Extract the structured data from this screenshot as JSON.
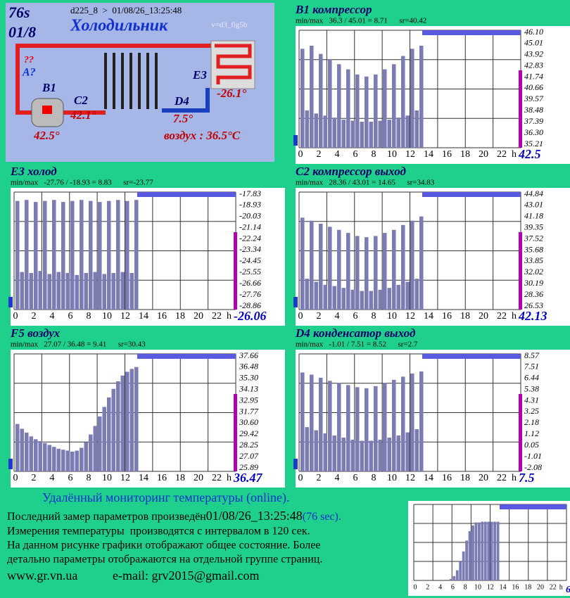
{
  "diagram": {
    "age": "76s",
    "page": "01/8",
    "device": "d225_8  >  01/08/26_13:25:48",
    "name": "Холодильник",
    "version": "v=d3_fig5b",
    "unknown": "??",
    "sensor_a": "A?",
    "b1": "B1",
    "b1_temp": "42.5°",
    "c2": "C2",
    "c2_temp": "42.1°",
    "e3": "E3",
    "e3_temp": "-26.1°",
    "d4": "D4",
    "d4_temp": "7.5°",
    "air": "воздух : 36.5°C"
  },
  "chart_data": [
    {
      "type": "area",
      "title": "B1 компрессор",
      "subtitle": "min/max   36.3 / 45.01 = 8.71      sr=40.42",
      "current": 42.5,
      "color": "#7c7cb4",
      "x_label": "h",
      "x": [
        0,
        0.5,
        1,
        1.5,
        2,
        2.5,
        3,
        3.5,
        4,
        4.5,
        5,
        5.5,
        6,
        6.5,
        7,
        7.5,
        8,
        8.5,
        9,
        9.5,
        10,
        10.5,
        11,
        11.5,
        12,
        12.5,
        13
      ],
      "values": [
        44.5,
        38.5,
        44.8,
        38.2,
        44,
        38,
        43.5,
        37.8,
        43,
        37.6,
        42.5,
        37.5,
        42,
        37.4,
        41.8,
        37.4,
        42,
        37.5,
        42.5,
        37.6,
        43,
        37.8,
        43.8,
        38,
        44.5,
        38.5,
        44.8
      ],
      "xlim": [
        0,
        24
      ],
      "xticks": [
        0,
        2,
        4,
        6,
        8,
        10,
        12,
        14,
        16,
        18,
        20,
        22
      ],
      "ylim": [
        35.21,
        46.1
      ],
      "yticks": [
        {
          "value": 46.1,
          "label": "46.10"
        },
        45.01,
        43.92,
        42.83,
        41.74,
        40.66,
        39.57,
        38.48,
        37.39,
        {
          "value": 36.3,
          "label": "36.30"
        },
        35.21
      ]
    },
    {
      "type": "area",
      "title": "E3 холод",
      "subtitle": "min/max   -27.76 / -18.93 = 8.83      sr=-23.77",
      "current": -26.06,
      "color": "#7c7cb4",
      "x_label": "h",
      "x": [
        0,
        0.5,
        1,
        1.5,
        2,
        2.5,
        3,
        3.5,
        4,
        4.5,
        5,
        5.5,
        6,
        6.5,
        7,
        7.5,
        8,
        8.5,
        9,
        9.5,
        10,
        10.5,
        11,
        11.5,
        12,
        12.5,
        13
      ],
      "values": [
        -18.5,
        -25.5,
        -18.4,
        -25.6,
        -18.6,
        -25.4,
        -18.5,
        -25.7,
        -18.4,
        -25.5,
        -18.6,
        -25.6,
        -18.5,
        -25.8,
        -18.4,
        -25.6,
        -18.5,
        -25.5,
        -18.6,
        -25.7,
        -18.5,
        -25.6,
        -18.4,
        -25.5,
        -18.5,
        -25.6,
        -18.4
      ],
      "xlim": [
        0,
        24
      ],
      "xticks": [
        0,
        2,
        4,
        6,
        8,
        10,
        12,
        14,
        16,
        18,
        20,
        22
      ],
      "ylim": [
        -28.86,
        -17.83
      ],
      "yticks": [
        -17.83,
        -18.93,
        -20.03,
        -21.14,
        -22.24,
        -23.34,
        -24.45,
        -25.55,
        -26.66,
        -27.76,
        -28.86
      ]
    },
    {
      "type": "area",
      "title": "C2 компрессор выход",
      "subtitle": "min/max   28.36 / 43.01 = 14.65      sr=34.83",
      "current": 42.13,
      "color": "#7c7cb4",
      "x_label": "h",
      "x": [
        0,
        0.5,
        1,
        1.5,
        2,
        2.5,
        3,
        3.5,
        4,
        4.5,
        5,
        5.5,
        6,
        6.5,
        7,
        7.5,
        8,
        8.5,
        9,
        9.5,
        10,
        10.5,
        11,
        11.5,
        12,
        12.5,
        13
      ],
      "values": [
        41,
        31,
        40.5,
        30.5,
        40,
        30,
        39.5,
        29.8,
        39,
        29.5,
        38.5,
        29.2,
        38,
        29,
        37.8,
        29,
        38,
        29.2,
        38.5,
        29.5,
        39,
        30,
        39.8,
        30.5,
        40.5,
        31,
        41.2
      ],
      "xlim": [
        0,
        24
      ],
      "xticks": [
        0,
        2,
        4,
        6,
        8,
        10,
        12,
        14,
        16,
        18,
        20,
        22
      ],
      "ylim": [
        26.53,
        44.84
      ],
      "yticks": [
        44.84,
        43.01,
        41.18,
        39.35,
        37.52,
        35.68,
        33.85,
        32.02,
        30.19,
        28.36,
        26.53
      ]
    },
    {
      "type": "area",
      "title": "F5 воздух",
      "subtitle": "min/max   27.07 / 36.48 = 9.41      sr=30.43",
      "current": 36.47,
      "color": "#7c7cb4",
      "x_label": "h",
      "x": [
        0,
        0.5,
        1,
        1.5,
        2,
        2.5,
        3,
        3.5,
        4,
        4.5,
        5,
        5.5,
        6,
        6.5,
        7,
        7.5,
        8,
        8.5,
        9,
        9.5,
        10,
        10.5,
        11,
        11.5,
        12,
        12.5,
        13
      ],
      "values": [
        30.5,
        30,
        29.6,
        29.2,
        28.9,
        28.7,
        28.5,
        28.3,
        28.1,
        27.9,
        27.8,
        27.7,
        27.6,
        27.7,
        28,
        28.6,
        29.4,
        30.3,
        31.3,
        32.3,
        33.3,
        34.2,
        35,
        35.6,
        36,
        36.3,
        36.5
      ],
      "xlim": [
        0,
        24
      ],
      "xticks": [
        0,
        2,
        4,
        6,
        8,
        10,
        12,
        14,
        16,
        18,
        20,
        22
      ],
      "ylim": [
        25.89,
        37.66
      ],
      "yticks": [
        37.66,
        36.48,
        {
          "value": 35.3,
          "label": "35.30"
        },
        34.13,
        32.95,
        31.77,
        {
          "value": 30.6,
          "label": "30.60"
        },
        29.42,
        28.25,
        27.07,
        25.89
      ]
    },
    {
      "type": "area",
      "title": "D4 конденсатор выход",
      "subtitle": "min/max   -1.01 / 7.51 = 8.52      sr=2.7",
      "current": 7.5,
      "color": "#7c7cb4",
      "x_label": "h",
      "x": [
        0,
        0.5,
        1,
        1.5,
        2,
        2.5,
        3,
        3.5,
        4,
        4.5,
        5,
        5.5,
        6,
        6.5,
        7,
        7.5,
        8,
        8.5,
        9,
        9.5,
        10,
        10.5,
        11,
        11.5,
        12,
        12.5,
        13
      ],
      "values": [
        7,
        1.8,
        6.8,
        1.5,
        6.5,
        1.2,
        6.2,
        1,
        6,
        0.8,
        5.8,
        0.6,
        5.6,
        0.5,
        5.5,
        0.5,
        5.7,
        0.6,
        6,
        0.8,
        6.3,
        1,
        6.6,
        1.3,
        6.9,
        1.6,
        7.1
      ],
      "xlim": [
        0,
        24
      ],
      "xticks": [
        0,
        2,
        4,
        6,
        8,
        10,
        12,
        14,
        16,
        18,
        20,
        22
      ],
      "ylim": [
        -2.08,
        8.57
      ],
      "yticks": [
        8.57,
        7.51,
        6.44,
        5.38,
        4.31,
        3.25,
        2.18,
        1.12,
        0.05,
        -1.01,
        -2.08
      ]
    },
    {
      "type": "area",
      "current": 6,
      "color": "#7c7cb4",
      "x_label": "h",
      "x": [
        0,
        0.5,
        1,
        1.5,
        2,
        2.5,
        3,
        3.5,
        4,
        4.5,
        5,
        5.5,
        6,
        6.5,
        7,
        7.5,
        8,
        8.5,
        9,
        9.5,
        10,
        10.5,
        11,
        11.5,
        12,
        12.5,
        13
      ],
      "values": [
        0,
        0,
        0,
        0,
        0,
        0,
        0,
        0,
        0,
        0,
        0,
        2,
        6,
        14,
        26,
        40,
        55,
        68,
        76,
        80,
        80,
        81,
        81,
        81,
        81,
        81,
        81
      ],
      "xlim": [
        0,
        24
      ],
      "xticks": [
        0,
        2,
        4,
        6,
        8,
        10,
        12,
        14,
        16,
        18,
        20,
        22
      ],
      "ylim": [
        0,
        100
      ]
    }
  ],
  "footer": {
    "heading": "Удалённый мониторинг температуры (online).",
    "last_label": "Последний замер параметров произведён",
    "last_time": "01/08/26_13:25:48",
    "last_age": "(76 sec).",
    "line2": "Измерения температуры  производятся с интервалом в 120 сек.",
    "line3": "На данном рисунке графики отображают общее состояние. Более",
    "line4": "детально параметры отображаются на отдельной группе страниц.",
    "site": "www.gr.vn.ua",
    "email": "e-mail: grv2015@gmail.com"
  }
}
